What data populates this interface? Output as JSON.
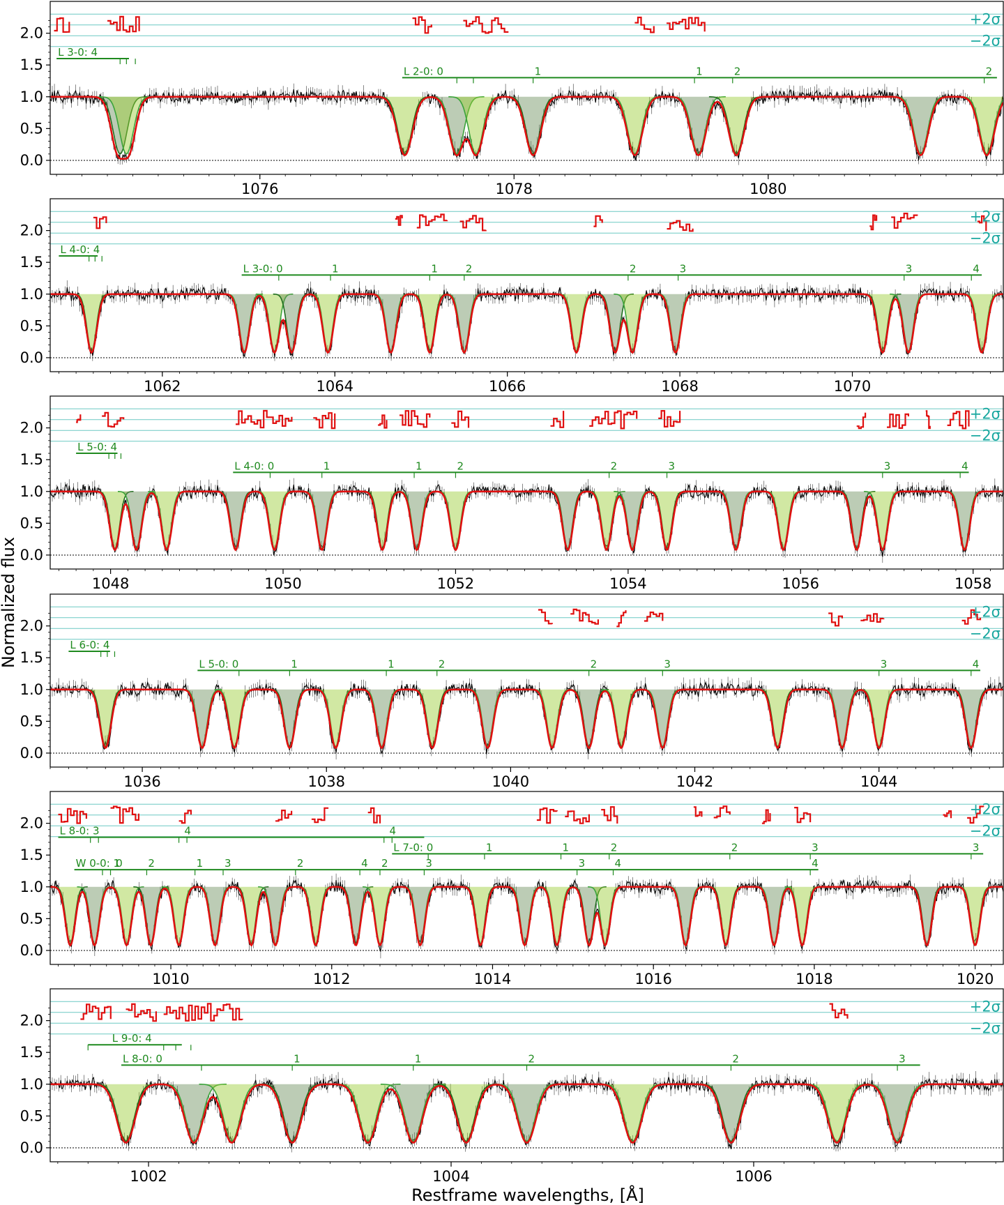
{
  "figure": {
    "ylabel": "Normalized flux",
    "xlabel": "Restframe wavelengths, [Å]",
    "colors": {
      "data": "#000000",
      "model": "#e01010",
      "component_dark": "#1f6e1f",
      "component_mid": "#3aa33a",
      "fill_light": "#9acd32",
      "fill_dark": "#6b8e5a",
      "gray_component": "#8c8c8c",
      "residuals": "#e01010",
      "sigma_lines": "#6cc9c4",
      "marker_lines": "#1f8a1f"
    }
  },
  "chart_data": [
    {
      "type": "line",
      "title": "",
      "xlabel": "",
      "ylabel": "Normalized flux",
      "xlim": [
        1074.35,
        1081.85
      ],
      "ylim": [
        -0.22,
        2.5
      ],
      "xticks": [
        1076,
        1078,
        1080
      ],
      "xtick_labels": [
        "1076",
        "1078",
        "1080"
      ],
      "yticks": [
        0.0,
        0.5,
        1.0,
        1.5,
        2.0
      ],
      "ytick_labels": [
        "0.0",
        "0.5",
        "1.0",
        "1.5",
        "2.0"
      ],
      "sigma_labels": [
        "+2σ",
        "−2σ"
      ],
      "absorption_lines": [
        1077.14,
        1077.55,
        1077.7,
        1078.15,
        1078.95,
        1079.45,
        1079.75,
        1081.2,
        1081.72,
        1074.9,
        1074.95
      ],
      "residual_segments": [
        [
          1074.38,
          1074.5
        ],
        [
          1074.8,
          1075.05
        ],
        [
          1077.2,
          1077.35
        ],
        [
          1077.6,
          1077.95
        ],
        [
          1078.95,
          1079.1
        ],
        [
          1079.2,
          1079.5
        ]
      ],
      "line_series": [
        {
          "label": "L 3-0: 4",
          "level": 1.6,
          "start": 1074.4,
          "end": 1074.97,
          "ticks": [
            1074.9,
            1074.95,
            1075.02
          ],
          "labels": [
            {
              "at": 1074.4,
              "text": "L 3-0: 4"
            }
          ]
        },
        {
          "label": "L 2-0: 0",
          "level": 1.3,
          "start": 1077.12,
          "end": 1081.8,
          "ticks": [
            1077.55,
            1077.68,
            1078.15,
            1079.42,
            1079.72,
            1081.7
          ],
          "labels": [
            {
              "at": 1077.12,
              "text": "L 2-0: 0"
            },
            {
              "at": 1078.15,
              "text": "1"
            },
            {
              "at": 1079.42,
              "text": "1"
            },
            {
              "at": 1079.72,
              "text": "2"
            },
            {
              "at": 1081.7,
              "text": "2"
            }
          ]
        }
      ]
    },
    {
      "type": "line",
      "title": "",
      "xlabel": "",
      "ylabel": "Normalized flux",
      "xlim": [
        1060.7,
        1071.75
      ],
      "ylim": [
        -0.22,
        2.5
      ],
      "xticks": [
        1062,
        1064,
        1066,
        1068,
        1070
      ],
      "xtick_labels": [
        "1062",
        "1064",
        "1066",
        "1068",
        "1070"
      ],
      "yticks": [
        0.0,
        0.5,
        1.0,
        1.5,
        2.0
      ],
      "ytick_labels": [
        "0.0",
        "0.5",
        "1.0",
        "1.5",
        "2.0"
      ],
      "sigma_labels": [
        "+2σ",
        "−2σ"
      ],
      "absorption_lines": [
        1061.18,
        1062.95,
        1063.3,
        1063.5,
        1063.92,
        1064.65,
        1065.1,
        1065.5,
        1066.8,
        1067.25,
        1067.45,
        1067.95,
        1070.35,
        1070.65,
        1071.5
      ],
      "residual_segments": [
        [
          1061.2,
          1061.35
        ],
        [
          1064.7,
          1064.78
        ],
        [
          1064.95,
          1065.3
        ],
        [
          1065.45,
          1065.75
        ],
        [
          1067.0,
          1067.1
        ],
        [
          1067.85,
          1068.15
        ],
        [
          1070.2,
          1070.28
        ],
        [
          1070.45,
          1070.75
        ],
        [
          1071.45,
          1071.55
        ]
      ],
      "line_series": [
        {
          "label": "L 4-0: 4",
          "level": 1.6,
          "start": 1060.8,
          "end": 1061.25,
          "ticks": [
            1061.15,
            1061.22,
            1061.3
          ],
          "labels": [
            {
              "at": 1060.8,
              "text": "L 4-0: 4"
            }
          ]
        },
        {
          "label": "L 3-0: 0",
          "level": 1.3,
          "start": 1062.92,
          "end": 1071.5,
          "ticks": [
            1063.35,
            1063.95,
            1065.1,
            1065.5,
            1067.4,
            1067.98,
            1070.6,
            1071.38
          ],
          "labels": [
            {
              "at": 1062.92,
              "text": "L 3-0: 0"
            },
            {
              "at": 1063.95,
              "text": "1"
            },
            {
              "at": 1065.1,
              "text": "1"
            },
            {
              "at": 1065.5,
              "text": "2"
            },
            {
              "at": 1067.4,
              "text": "2"
            },
            {
              "at": 1067.98,
              "text": "3"
            },
            {
              "at": 1070.6,
              "text": "3"
            },
            {
              "at": 1071.38,
              "text": "4"
            }
          ]
        }
      ]
    },
    {
      "type": "line",
      "title": "",
      "xlabel": "",
      "ylabel": "Normalized flux",
      "xlim": [
        1047.3,
        1058.35
      ],
      "ylim": [
        -0.22,
        2.5
      ],
      "xticks": [
        1048,
        1050,
        1052,
        1054,
        1056,
        1058
      ],
      "xtick_labels": [
        "1048",
        "1050",
        "1052",
        "1054",
        "1056",
        "1058"
      ],
      "yticks": [
        0.0,
        0.5,
        1.0,
        1.5,
        2.0
      ],
      "ytick_labels": [
        "0.0",
        "0.5",
        "1.0",
        "1.5",
        "2.0"
      ],
      "sigma_labels": [
        "+2σ",
        "−2σ"
      ],
      "absorption_lines": [
        1048.05,
        1048.3,
        1048.65,
        1049.45,
        1049.9,
        1050.45,
        1051.15,
        1051.55,
        1052.0,
        1053.3,
        1053.75,
        1054.05,
        1054.45,
        1055.25,
        1055.8,
        1056.65,
        1056.95,
        1057.9
      ],
      "residual_segments": [
        [
          1047.6,
          1047.65
        ],
        [
          1047.9,
          1048.15
        ],
        [
          1049.45,
          1050.1
        ],
        [
          1050.35,
          1050.6
        ],
        [
          1051.1,
          1051.2
        ],
        [
          1051.35,
          1051.7
        ],
        [
          1051.95,
          1052.15
        ],
        [
          1053.1,
          1053.25
        ],
        [
          1053.55,
          1054.1
        ],
        [
          1054.35,
          1054.6
        ],
        [
          1056.65,
          1056.75
        ],
        [
          1057.0,
          1057.25
        ],
        [
          1057.45,
          1057.5
        ],
        [
          1057.7,
          1057.95
        ]
      ],
      "line_series": [
        {
          "label": "L 5-0: 4",
          "level": 1.6,
          "start": 1047.6,
          "end": 1048.08,
          "ticks": [
            1047.98,
            1048.05,
            1048.12
          ],
          "labels": [
            {
              "at": 1047.6,
              "text": "L 5-0: 4"
            }
          ]
        },
        {
          "label": "L 4-0: 0",
          "level": 1.3,
          "start": 1049.42,
          "end": 1057.95,
          "ticks": [
            1049.85,
            1050.45,
            1051.52,
            1052.0,
            1053.78,
            1054.45,
            1056.95,
            1057.85
          ],
          "labels": [
            {
              "at": 1049.42,
              "text": "L 4-0: 0"
            },
            {
              "at": 1050.45,
              "text": "1"
            },
            {
              "at": 1051.52,
              "text": "1"
            },
            {
              "at": 1052.0,
              "text": "2"
            },
            {
              "at": 1053.78,
              "text": "2"
            },
            {
              "at": 1054.45,
              "text": "3"
            },
            {
              "at": 1056.95,
              "text": "3"
            },
            {
              "at": 1057.85,
              "text": "4"
            }
          ]
        }
      ]
    },
    {
      "type": "line",
      "title": "",
      "xlabel": "",
      "ylabel": "Normalized flux",
      "xlim": [
        1035.0,
        1045.35
      ],
      "ylim": [
        -0.22,
        2.5
      ],
      "xticks": [
        1036,
        1038,
        1040,
        1042,
        1044
      ],
      "xtick_labels": [
        "1036",
        "1038",
        "1040",
        "1042",
        "1044"
      ],
      "yticks": [
        0.0,
        0.5,
        1.0,
        1.5,
        2.0
      ],
      "ytick_labels": [
        "0.0",
        "0.5",
        "1.0",
        "1.5",
        "2.0"
      ],
      "sigma_labels": [
        "+2σ",
        "−2σ"
      ],
      "absorption_lines": [
        1035.6,
        1036.65,
        1037.0,
        1037.6,
        1038.1,
        1038.6,
        1039.15,
        1039.75,
        1040.45,
        1040.85,
        1041.2,
        1041.65,
        1042.9,
        1043.6,
        1044.0,
        1045.0
      ],
      "residual_segments": [
        [
          1040.3,
          1040.45
        ],
        [
          1040.65,
          1040.95
        ],
        [
          1041.15,
          1041.25
        ],
        [
          1041.45,
          1041.65
        ],
        [
          1043.45,
          1043.6
        ],
        [
          1043.8,
          1044.05
        ],
        [
          1044.9,
          1045.1
        ]
      ],
      "line_series": [
        {
          "label": "L 6-0: 4",
          "level": 1.6,
          "start": 1035.2,
          "end": 1035.65,
          "ticks": [
            1035.55,
            1035.62,
            1035.7
          ],
          "labels": [
            {
              "at": 1035.2,
              "text": "L 6-0: 4"
            }
          ]
        },
        {
          "label": "L 5-0: 0",
          "level": 1.3,
          "start": 1036.6,
          "end": 1045.1,
          "ticks": [
            1037.05,
            1037.6,
            1038.65,
            1039.2,
            1040.85,
            1041.65,
            1044.0,
            1045.0
          ],
          "labels": [
            {
              "at": 1036.6,
              "text": "L 5-0: 0"
            },
            {
              "at": 1037.6,
              "text": "1"
            },
            {
              "at": 1038.65,
              "text": "1"
            },
            {
              "at": 1039.2,
              "text": "2"
            },
            {
              "at": 1040.85,
              "text": "2"
            },
            {
              "at": 1041.65,
              "text": "3"
            },
            {
              "at": 1044.0,
              "text": "3"
            },
            {
              "at": 1045.0,
              "text": "4"
            }
          ]
        }
      ]
    },
    {
      "type": "line",
      "title": "",
      "xlabel": "",
      "ylabel": "Normalized flux",
      "xlim": [
        1008.5,
        1020.35
      ],
      "ylim": [
        -0.22,
        2.5
      ],
      "xticks": [
        1010,
        1012,
        1014,
        1016,
        1018,
        1020
      ],
      "xtick_labels": [
        "1010",
        "1012",
        "1014",
        "1016",
        "1018",
        "1020"
      ],
      "yticks": [
        0.0,
        0.5,
        1.0,
        1.5,
        2.0
      ],
      "ytick_labels": [
        "0.0",
        "0.5",
        "1.0",
        "1.5",
        "2.0"
      ],
      "sigma_labels": [
        "+2σ",
        "−2σ"
      ],
      "absorption_lines": [
        1008.75,
        1009.05,
        1009.45,
        1009.75,
        1010.1,
        1010.55,
        1011.0,
        1011.3,
        1011.8,
        1012.3,
        1012.6,
        1013.1,
        1013.85,
        1014.4,
        1014.8,
        1015.2,
        1015.4,
        1016.4,
        1016.9,
        1017.5,
        1017.85,
        1019.4,
        1020.0
      ],
      "residual_segments": [
        [
          1008.6,
          1008.95
        ],
        [
          1009.25,
          1009.6
        ],
        [
          1010.1,
          1010.25
        ],
        [
          1011.3,
          1011.5
        ],
        [
          1011.75,
          1011.95
        ],
        [
          1012.45,
          1012.6
        ],
        [
          1014.55,
          1014.8
        ],
        [
          1014.9,
          1015.2
        ],
        [
          1015.35,
          1015.55
        ],
        [
          1016.5,
          1016.6
        ],
        [
          1016.75,
          1016.95
        ],
        [
          1017.35,
          1017.45
        ],
        [
          1017.75,
          1017.95
        ],
        [
          1019.6,
          1019.7
        ],
        [
          1019.9,
          1020.1
        ]
      ],
      "line_series": [
        {
          "label": "L 8-0: 3",
          "level": 1.78,
          "start": 1008.6,
          "end": 1013.15,
          "ticks": [
            1009.0,
            1009.1,
            1010.1,
            1010.2,
            1012.65,
            1012.75
          ],
          "labels": [
            {
              "at": 1008.6,
              "text": "L 8-0: 3"
            },
            {
              "at": 1010.15,
              "text": "4"
            },
            {
              "at": 1012.7,
              "text": "4"
            }
          ]
        },
        {
          "label": "L 7-0: 0",
          "level": 1.52,
          "start": 1012.75,
          "end": 1020.1,
          "ticks": [
            1013.2,
            1013.9,
            1014.85,
            1015.45,
            1016.95,
            1017.95,
            1019.95
          ],
          "labels": [
            {
              "at": 1012.75,
              "text": "L 7-0: 0"
            },
            {
              "at": 1013.9,
              "text": "1"
            },
            {
              "at": 1014.85,
              "text": "1"
            },
            {
              "at": 1015.45,
              "text": "2"
            },
            {
              "at": 1016.95,
              "text": "2"
            },
            {
              "at": 1017.95,
              "text": "3"
            },
            {
              "at": 1019.95,
              "text": "3"
            }
          ]
        },
        {
          "label": "W 0-0: 1",
          "level": 1.27,
          "start": 1008.8,
          "end": 1018.05,
          "ticks": [
            1009.15,
            1009.25,
            1009.7,
            1010.3,
            1010.65,
            1011.55,
            1012.35,
            1012.6,
            1013.15,
            1015.05,
            1015.5,
            1017.95
          ],
          "labels": [
            {
              "at": 1008.8,
              "text": "W 0-0: 1"
            },
            {
              "at": 1009.3,
              "text": "0"
            },
            {
              "at": 1009.7,
              "text": "2"
            },
            {
              "at": 1010.3,
              "text": "1"
            },
            {
              "at": 1010.65,
              "text": "3"
            },
            {
              "at": 1011.55,
              "text": "2"
            },
            {
              "at": 1012.35,
              "text": "4"
            },
            {
              "at": 1012.6,
              "text": "2"
            },
            {
              "at": 1013.15,
              "text": "3"
            },
            {
              "at": 1015.05,
              "text": "3"
            },
            {
              "at": 1015.5,
              "text": "4"
            },
            {
              "at": 1017.95,
              "text": "4"
            }
          ]
        }
      ]
    },
    {
      "type": "line",
      "title": "",
      "xlabel": "Restframe wavelengths, [Å]",
      "ylabel": "Normalized flux",
      "xlim": [
        1001.35,
        1007.65
      ],
      "ylim": [
        -0.22,
        2.5
      ],
      "xticks": [
        1002,
        1004,
        1006
      ],
      "xtick_labels": [
        "1002",
        "1004",
        "1006"
      ],
      "yticks": [
        0.0,
        0.5,
        1.0,
        1.5,
        2.0
      ],
      "ytick_labels": [
        "0.0",
        "0.5",
        "1.0",
        "1.5",
        "2.0"
      ],
      "sigma_labels": [
        "+2σ",
        "−2σ"
      ],
      "absorption_lines": [
        1001.85,
        1002.3,
        1002.55,
        1002.95,
        1003.45,
        1003.75,
        1004.1,
        1004.5,
        1005.2,
        1005.85,
        1006.55,
        1006.95
      ],
      "residual_segments": [
        [
          1001.55,
          1001.75
        ],
        [
          1001.85,
          1002.05
        ],
        [
          1002.1,
          1002.62
        ],
        [
          1006.5,
          1006.62
        ]
      ],
      "line_series": [
        {
          "label": "L 9-0: 4",
          "level": 1.62,
          "start": 1001.6,
          "end": 1002.22,
          "ticks": [
            1001.6,
            1002.1,
            1002.18,
            1002.28
          ],
          "labels": [
            {
              "at": 1001.75,
              "text": "L 9-0: 4"
            }
          ]
        },
        {
          "label": "L 8-0: 0",
          "level": 1.3,
          "start": 1001.82,
          "end": 1007.1,
          "ticks": [
            1002.35,
            1002.95,
            1003.75,
            1004.5,
            1005.85,
            1006.95
          ],
          "labels": [
            {
              "at": 1001.82,
              "text": "L 8-0: 0"
            },
            {
              "at": 1002.95,
              "text": "1"
            },
            {
              "at": 1003.75,
              "text": "1"
            },
            {
              "at": 1004.5,
              "text": "2"
            },
            {
              "at": 1005.85,
              "text": "2"
            },
            {
              "at": 1006.95,
              "text": "3"
            }
          ]
        }
      ]
    }
  ]
}
